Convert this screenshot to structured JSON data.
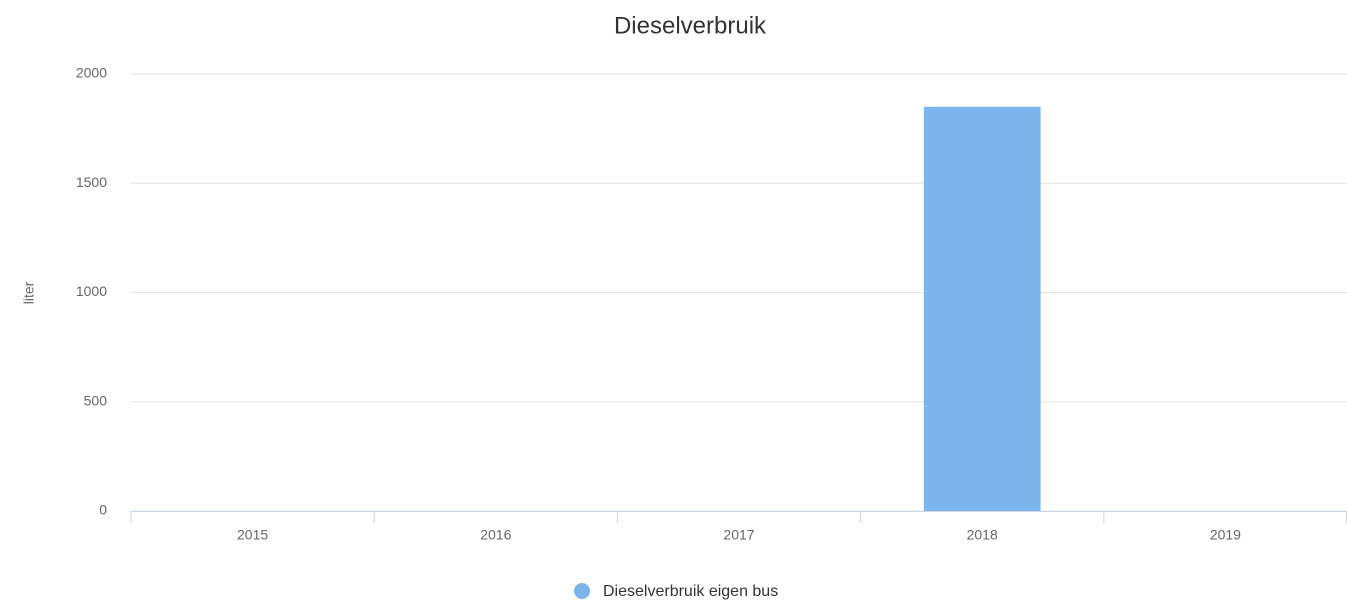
{
  "chart_data": {
    "type": "bar",
    "title": "Dieselverbruik",
    "y_label": "liter",
    "categories": [
      "2015",
      "2016",
      "2017",
      "2018",
      "2019"
    ],
    "series": [
      {
        "name": "Dieselverbruik eigen bus",
        "color": "#7cb5ec",
        "values": [
          0,
          0,
          0,
          1850,
          0
        ]
      }
    ],
    "ylim": [
      0,
      2000
    ],
    "yticks": [
      0,
      500,
      1000,
      1500,
      2000
    ],
    "grid": true,
    "legend": "bottom"
  }
}
